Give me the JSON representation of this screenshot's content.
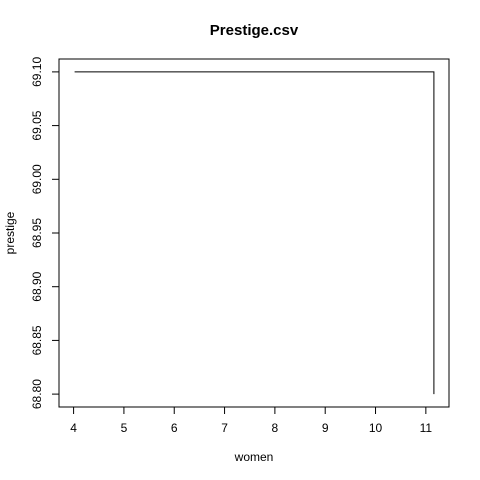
{
  "chart_data": {
    "type": "line",
    "title": "Prestige.csv",
    "xlabel": "women",
    "ylabel": "prestige",
    "xlim": [
      3.71,
      11.46
    ],
    "ylim": [
      68.788,
      69.112
    ],
    "x_ticks": [
      4,
      5,
      6,
      7,
      8,
      9,
      10,
      11
    ],
    "y_ticks": [
      "68.80",
      "68.85",
      "68.90",
      "68.95",
      "69.00",
      "69.05",
      "69.10"
    ],
    "grid": false,
    "series": [
      {
        "x": [
          4.02,
          11.16,
          11.16
        ],
        "y": [
          69.1,
          69.1,
          68.8
        ],
        "color": "#000000"
      }
    ]
  }
}
